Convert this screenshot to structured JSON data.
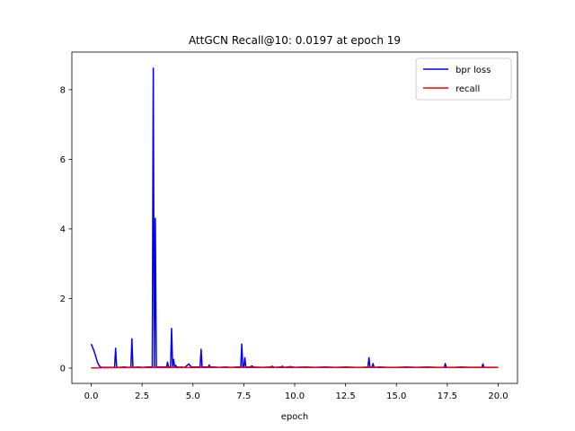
{
  "chart_data": {
    "type": "line",
    "title": "AttGCN Recall@10: 0.0197 at epoch 19",
    "xlabel": "epoch",
    "ylabel": "",
    "xlim": [
      -0.95,
      20.95
    ],
    "ylim": [
      -0.44,
      9.08
    ],
    "xticks": [
      0.0,
      2.5,
      5.0,
      7.5,
      10.0,
      12.5,
      15.0,
      17.5,
      20.0
    ],
    "xtick_labels": [
      "0.0",
      "2.5",
      "5.0",
      "7.5",
      "10.0",
      "12.5",
      "15.0",
      "17.5",
      "20.0"
    ],
    "yticks": [
      0,
      2,
      4,
      6,
      8
    ],
    "ytick_labels": [
      "0",
      "2",
      "4",
      "6",
      "8"
    ],
    "grid": false,
    "legend_position": "top-right",
    "series": [
      {
        "name": "bpr loss",
        "color": "#0000ff",
        "x": [
          0.0,
          0.1,
          0.2,
          0.3,
          0.4,
          0.5,
          0.7,
          1.0,
          1.15,
          1.2,
          1.25,
          1.4,
          1.6,
          1.8,
          1.95,
          2.0,
          2.05,
          2.3,
          2.5,
          2.8,
          3.0,
          3.05,
          3.1,
          3.15,
          3.2,
          3.25,
          3.3,
          3.5,
          3.7,
          3.75,
          3.8,
          3.9,
          3.95,
          4.0,
          4.05,
          4.1,
          4.15,
          4.2,
          4.3,
          4.35,
          4.4,
          4.6,
          4.8,
          4.9,
          5.0,
          5.2,
          5.35,
          5.4,
          5.45,
          5.6,
          5.75,
          5.8,
          5.85,
          6.0,
          6.3,
          6.6,
          6.9,
          7.2,
          7.35,
          7.4,
          7.45,
          7.5,
          7.55,
          7.6,
          7.8,
          7.9,
          8.0,
          8.4,
          8.8,
          8.9,
          9.0,
          9.3,
          9.4,
          9.5,
          9.8,
          10.0,
          10.5,
          11.0,
          11.5,
          12.0,
          12.5,
          13.0,
          13.3,
          13.6,
          13.65,
          13.7,
          13.8,
          13.85,
          13.9,
          14.2,
          14.6,
          15.0,
          15.5,
          16.0,
          16.5,
          17.0,
          17.35,
          17.4,
          17.45,
          17.8,
          18.2,
          18.6,
          19.0,
          19.2,
          19.25,
          19.3,
          19.6,
          20.0
        ],
        "values": [
          0.69,
          0.55,
          0.38,
          0.18,
          0.06,
          0.02,
          0.02,
          0.02,
          0.02,
          0.57,
          0.02,
          0.02,
          0.03,
          0.02,
          0.02,
          0.84,
          0.02,
          0.03,
          0.02,
          0.03,
          0.03,
          8.62,
          0.03,
          4.3,
          0.04,
          0.03,
          0.03,
          0.03,
          0.03,
          0.17,
          0.03,
          0.04,
          1.14,
          0.04,
          0.25,
          0.03,
          0.08,
          0.03,
          0.03,
          0.02,
          0.03,
          0.02,
          0.12,
          0.04,
          0.03,
          0.03,
          0.03,
          0.54,
          0.03,
          0.03,
          0.03,
          0.09,
          0.03,
          0.03,
          0.02,
          0.03,
          0.02,
          0.03,
          0.03,
          0.69,
          0.03,
          0.03,
          0.3,
          0.03,
          0.03,
          0.06,
          0.03,
          0.02,
          0.03,
          0.05,
          0.02,
          0.03,
          0.05,
          0.02,
          0.04,
          0.02,
          0.03,
          0.02,
          0.03,
          0.02,
          0.03,
          0.02,
          0.02,
          0.03,
          0.3,
          0.03,
          0.02,
          0.13,
          0.02,
          0.03,
          0.02,
          0.02,
          0.03,
          0.02,
          0.03,
          0.02,
          0.02,
          0.13,
          0.02,
          0.02,
          0.03,
          0.02,
          0.02,
          0.02,
          0.12,
          0.02,
          0.02,
          0.02
        ]
      },
      {
        "name": "recall",
        "color": "#ff0000",
        "x": [
          0,
          1,
          2,
          3,
          4,
          5,
          6,
          7,
          8,
          9,
          10,
          11,
          12,
          13,
          14,
          15,
          16,
          17,
          18,
          19,
          20
        ],
        "values": [
          0.005,
          0.012,
          0.014,
          0.015,
          0.016,
          0.016,
          0.017,
          0.017,
          0.018,
          0.018,
          0.018,
          0.018,
          0.019,
          0.019,
          0.019,
          0.019,
          0.019,
          0.019,
          0.019,
          0.0197,
          0.0195
        ]
      }
    ]
  }
}
